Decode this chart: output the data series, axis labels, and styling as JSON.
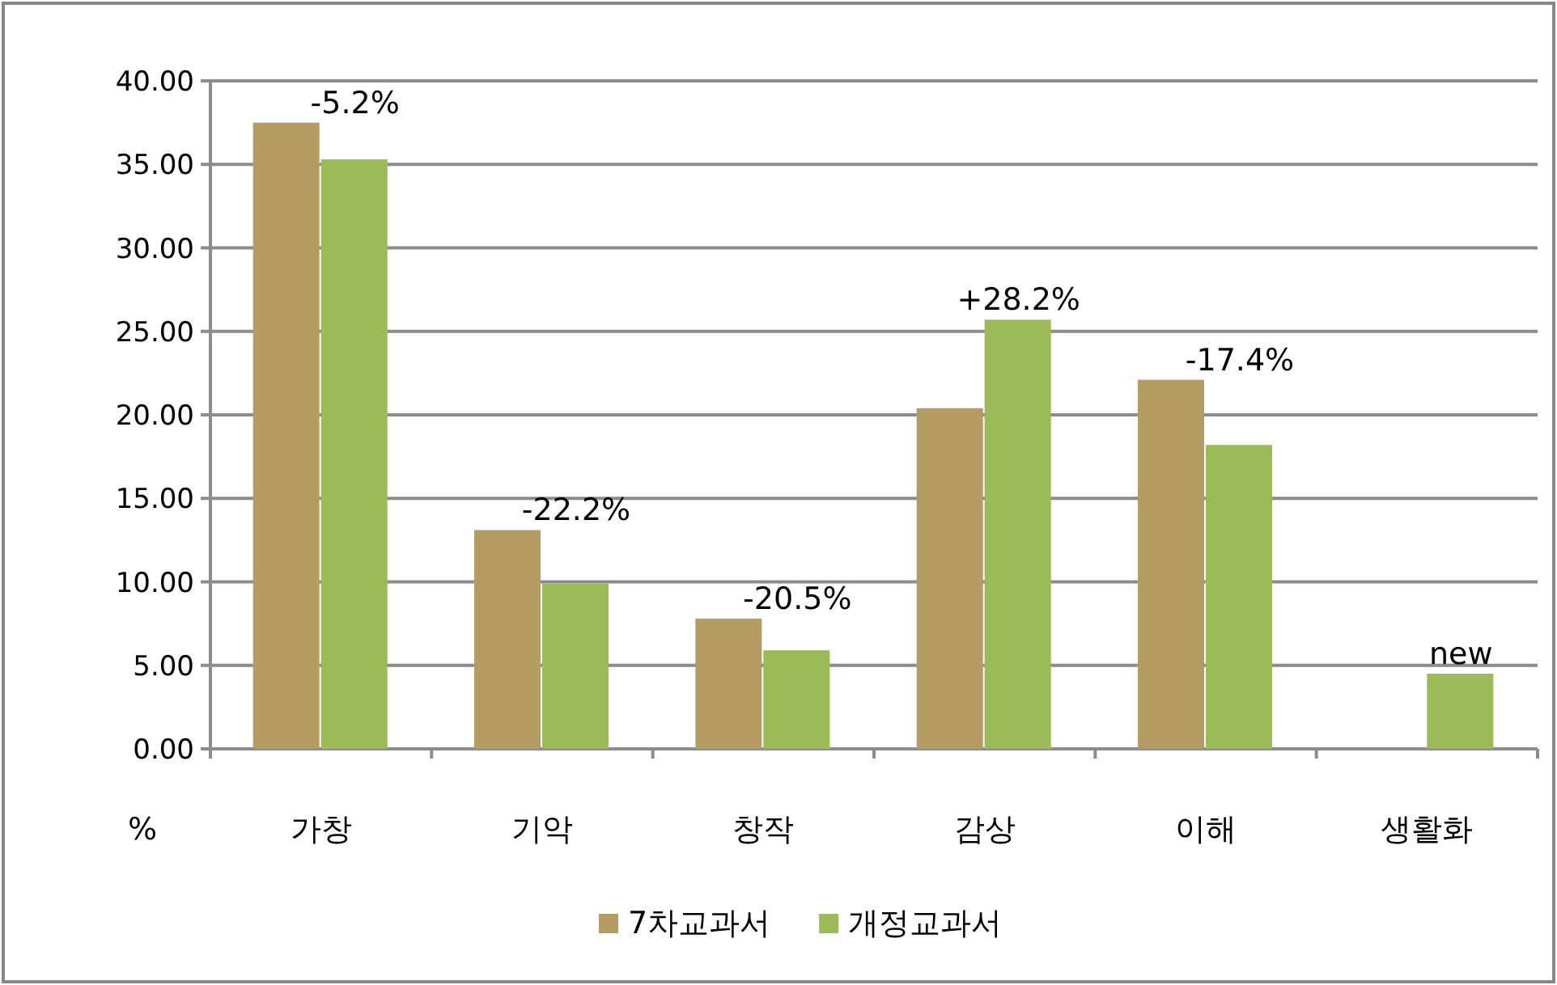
{
  "chart_data": {
    "type": "bar",
    "categories": [
      "가창",
      "기악",
      "창작",
      "감상",
      "이해",
      "생활화"
    ],
    "ylabel": "%",
    "series": [
      {
        "name": "7차교과서",
        "color": "#b59c62",
        "values": [
          37.5,
          13.1,
          7.8,
          20.4,
          22.1,
          null
        ]
      },
      {
        "name": "개정교과서",
        "color": "#9bbb59",
        "values": [
          35.3,
          9.9,
          5.9,
          25.7,
          18.2,
          4.5
        ]
      }
    ],
    "annotations": [
      {
        "text": "-5.2%",
        "x": "가창",
        "y": 37.5
      },
      {
        "text": "-22.2%",
        "x": "기악",
        "y": 13.1
      },
      {
        "text": "-20.5%",
        "x": "창작",
        "y": 7.8
      },
      {
        "text": "+28.2%",
        "x": "감상",
        "y": 25.7
      },
      {
        "text": "-17.4%",
        "x": "이해",
        "y": 22.1
      },
      {
        "text": "new",
        "x": "생활화",
        "y": 4.5
      }
    ],
    "ylim": [
      0,
      40
    ],
    "yticks": [
      {
        "value": 0,
        "label": "0.00"
      },
      {
        "value": 5,
        "label": "5.00"
      },
      {
        "value": 10,
        "label": "10.00"
      },
      {
        "value": 15,
        "label": "15.00"
      },
      {
        "value": 20,
        "label": "20.00"
      },
      {
        "value": 25,
        "label": "25.00"
      },
      {
        "value": 30,
        "label": "30.00"
      },
      {
        "value": 35,
        "label": "35.00"
      },
      {
        "value": 40,
        "label": "40.00"
      }
    ],
    "grid": "y",
    "legend": "bottom"
  }
}
